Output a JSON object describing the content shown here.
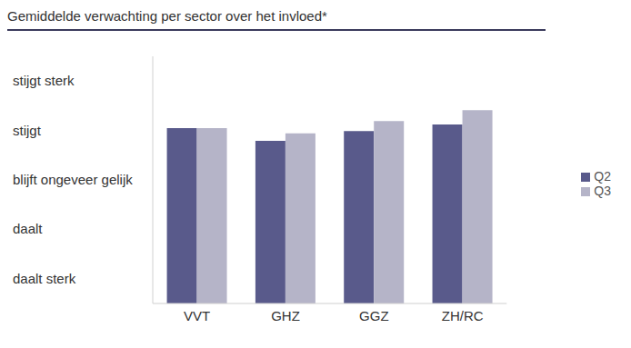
{
  "chart_data": {
    "type": "bar",
    "title": "Gemiddelde verwachting per sector over het invloed*",
    "categories": [
      "VVT",
      "GHZ",
      "GGZ",
      "ZH/RC"
    ],
    "series": [
      {
        "name": "Q2",
        "color": "#595a8b",
        "values": [
          4.05,
          3.79,
          3.99,
          4.12
        ]
      },
      {
        "name": "Q3",
        "color": "#b5b4c8",
        "values": [
          4.05,
          3.94,
          4.19,
          4.41
        ]
      }
    ],
    "ylim": [
      0.5,
      5.5
    ],
    "yticks": [
      {
        "value": 1,
        "label": "daalt sterk"
      },
      {
        "value": 2,
        "label": "daalt"
      },
      {
        "value": 3,
        "label": "blijft ongeveer gelijk"
      },
      {
        "value": 4,
        "label": "stijgt"
      },
      {
        "value": 5,
        "label": "stijgt sterk"
      }
    ],
    "grid": false,
    "legend": "right"
  }
}
